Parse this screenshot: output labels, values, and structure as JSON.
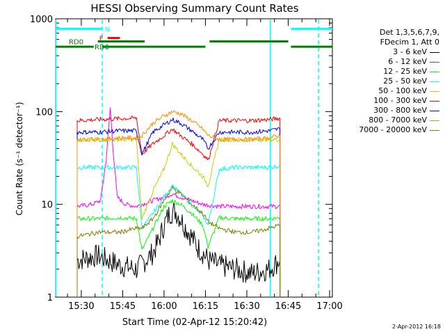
{
  "chart_data": {
    "type": "line",
    "title": "HESSI Observing Summary Count Rates",
    "xlabel": "Start Time (02-Apr-12 15:20:42)",
    "ylabel": "Count Rate (s⁻¹ detector⁻¹)",
    "xtick_labels": [
      "15:30",
      "15:45",
      "16:00",
      "16:15",
      "16:30",
      "16:45",
      "17:00"
    ],
    "xticks_min": [
      30,
      45,
      60,
      75,
      90,
      105,
      120
    ],
    "xlim": [
      20.7,
      121
    ],
    "ytick_labels": [
      "1",
      "10",
      "100",
      "1000"
    ],
    "yticks": [
      1,
      10,
      100,
      1000
    ],
    "ylim": [
      1,
      1000
    ],
    "yscale": "log",
    "legend_header": [
      "Det 1,3,5,6,7,9,",
      "FDecim 1, Att 0"
    ],
    "series": [
      {
        "name": "3 - 6 keV",
        "color": "#000000",
        "x": [
          28.5,
          36,
          44,
          50,
          56,
          58,
          60,
          62,
          64,
          66,
          68,
          70,
          72,
          74,
          76,
          80,
          86,
          92,
          98,
          102
        ],
        "y": [
          2.5,
          2.8,
          2.2,
          2.0,
          3.0,
          4.0,
          6.0,
          8.0,
          8.5,
          7.0,
          5.5,
          4.5,
          3.5,
          3.0,
          2.5,
          2.2,
          2.0,
          1.8,
          2.0,
          2.5
        ]
      },
      {
        "name": "6 - 12 keV",
        "color": "#ff00ff",
        "x": [
          28.5,
          34,
          37,
          39,
          40.5,
          41.5,
          43,
          46,
          50,
          52,
          56,
          60,
          63,
          66,
          70,
          74,
          80,
          86,
          92,
          98,
          102
        ],
        "y": [
          9.5,
          10,
          11,
          30,
          110,
          40,
          12,
          10,
          9.5,
          10,
          11,
          12,
          13,
          12,
          11,
          10,
          9.5,
          9.5,
          9.5,
          9.5,
          9.5
        ]
      },
      {
        "name": "12 - 25 keV",
        "color": "#00ff00",
        "x": [
          28.5,
          36,
          44,
          50,
          52,
          56,
          60,
          63,
          66,
          70,
          74,
          76,
          80,
          86,
          92,
          98,
          102
        ],
        "y": [
          7.0,
          7.0,
          7.2,
          7.0,
          3.2,
          5.5,
          9.5,
          11,
          10,
          8,
          6,
          3.5,
          7.2,
          7.0,
          7.0,
          7.0,
          7.2
        ]
      },
      {
        "name": "25 - 50 keV",
        "color": "#00ffff",
        "x": [
          28.5,
          36,
          44,
          50,
          52,
          56,
          60,
          63,
          66,
          70,
          74,
          76,
          80,
          86,
          92,
          98,
          102
        ],
        "y": [
          25,
          25,
          25,
          25,
          5.5,
          8,
          12,
          16,
          13,
          10,
          7.5,
          6,
          24,
          25,
          25,
          25,
          26
        ]
      },
      {
        "name": "50 - 100 keV",
        "color": "#cccc00",
        "x": [
          28.5,
          36,
          44,
          50,
          52,
          56,
          60,
          63,
          66,
          70,
          74,
          76,
          80,
          86,
          92,
          98,
          102
        ],
        "y": [
          50,
          50,
          50,
          50,
          7,
          14,
          24,
          45,
          35,
          26,
          20,
          16,
          50,
          50,
          50,
          50,
          50
        ]
      },
      {
        "name": "100 - 300 keV",
        "color": "#ff0000",
        "x": [
          28.5,
          36,
          44,
          50,
          52,
          56,
          60,
          63,
          66,
          70,
          74,
          76,
          80,
          86,
          92,
          98,
          102
        ],
        "y": [
          80,
          82,
          84,
          85,
          35,
          45,
          55,
          65,
          55,
          45,
          35,
          30,
          80,
          80,
          80,
          82,
          85
        ]
      },
      {
        "name": "300 - 800 keV",
        "color": "#0000ff",
        "x": [
          28.5,
          36,
          44,
          50,
          52,
          56,
          60,
          63,
          66,
          70,
          74,
          76,
          80,
          86,
          92,
          98,
          102
        ],
        "y": [
          60,
          60,
          62,
          62,
          35,
          60,
          72,
          82,
          75,
          62,
          50,
          40,
          60,
          60,
          60,
          62,
          65
        ]
      },
      {
        "name": "800 - 7000 keV",
        "color": "#ff8c00",
        "x": [
          28.5,
          36,
          44,
          50,
          52,
          56,
          60,
          63,
          66,
          70,
          74,
          76,
          80,
          86,
          92,
          98,
          102
        ],
        "y": [
          50,
          50,
          52,
          52,
          55,
          75,
          90,
          100,
          95,
          80,
          65,
          55,
          50,
          50,
          50,
          52,
          55
        ]
      },
      {
        "name": "7000 - 20000 keV",
        "color": "#808000",
        "x": [
          28.5,
          36,
          44,
          50,
          52,
          56,
          60,
          63,
          66,
          70,
          74,
          76,
          80,
          86,
          92,
          98,
          102
        ],
        "y": [
          4.5,
          5.0,
          5.0,
          5.5,
          5.5,
          7,
          11,
          15,
          13,
          10,
          8,
          6.5,
          5.5,
          5.0,
          5.0,
          5.5,
          6.0
        ]
      }
    ],
    "segments": [
      {
        "label": "N",
        "color": "#00ffff",
        "y": 780,
        "ranges": [
          [
            20.7,
            37.5
          ],
          [
            106,
            121
          ]
        ]
      },
      {
        "label": "F",
        "color": "#ff0000",
        "y": 620,
        "ranges": [
          [
            39.5,
            44
          ]
        ]
      },
      {
        "label": "RD0",
        "color": "#008000",
        "y": 570,
        "ranges": [
          [
            36,
            53
          ],
          [
            76.5,
            105
          ]
        ]
      },
      {
        "label": "RD6",
        "color": "#008000",
        "y": 500,
        "ranges": [
          [
            20.7,
            34.5
          ],
          [
            37.5,
            75
          ],
          [
            106,
            121
          ]
        ]
      }
    ],
    "vlines": [
      {
        "x": 20.8,
        "color": "#00ffff",
        "style": "solid"
      },
      {
        "x": 37.6,
        "color": "#00ffff",
        "style": "dashed"
      },
      {
        "x": 98.5,
        "color": "#00ffff",
        "style": "solid"
      },
      {
        "x": 116,
        "color": "#00ffff",
        "style": "dashed"
      }
    ]
  },
  "footer_date": "2-Apr-2012 16:18"
}
